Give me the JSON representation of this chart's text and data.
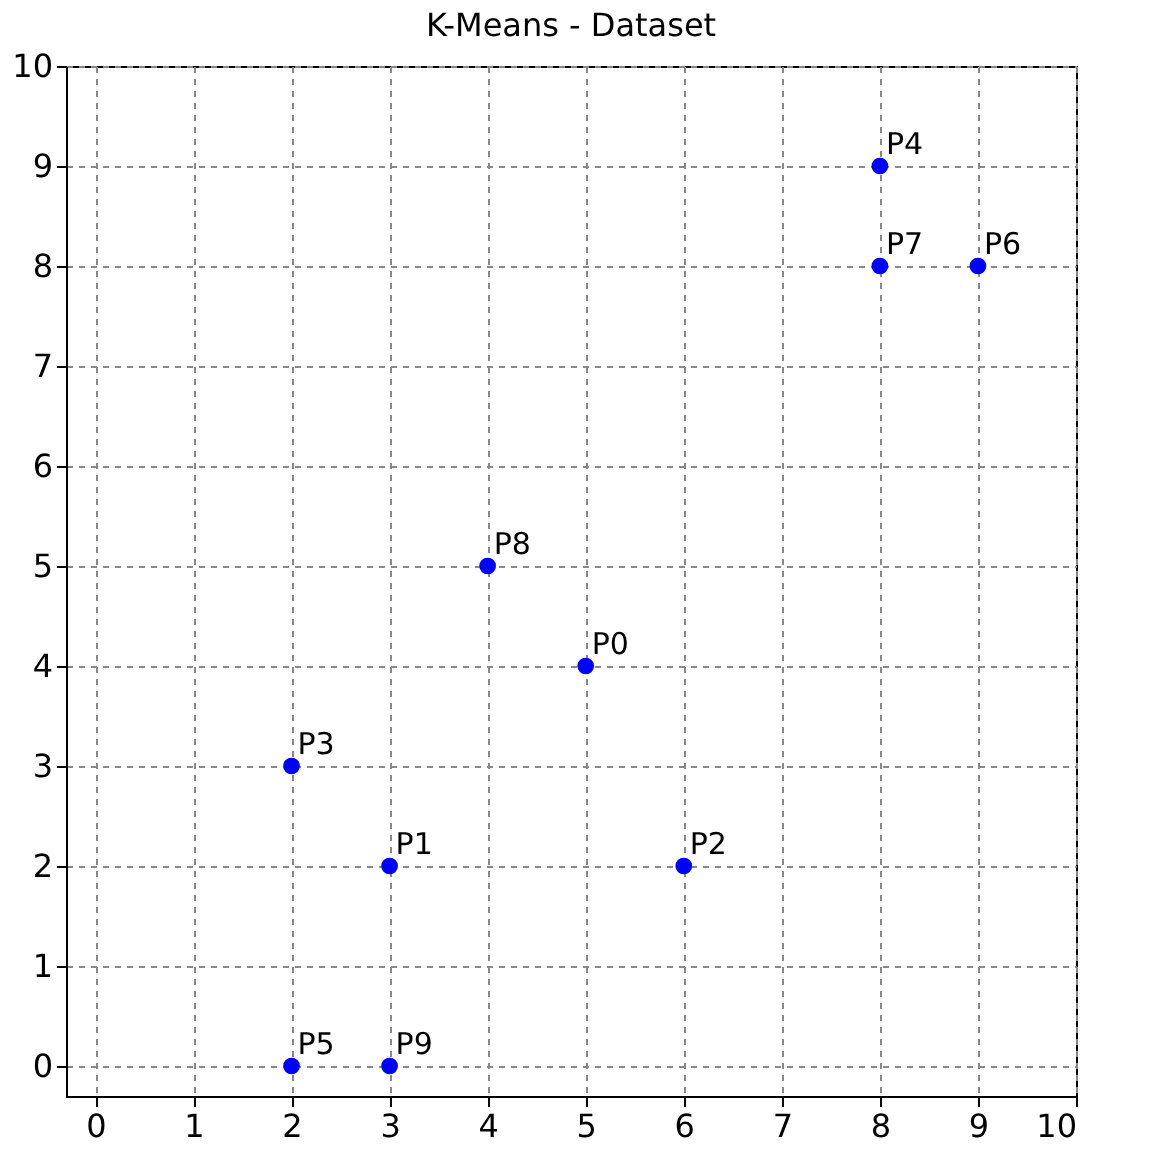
{
  "chart_data": {
    "type": "scatter",
    "title": "K-Means - Dataset",
    "x": [
      5,
      3,
      6,
      2,
      8,
      2,
      9,
      8,
      4,
      3
    ],
    "series": [
      {
        "color": "#0000ff",
        "values": [
          4,
          2,
          2,
          3,
          9,
          0,
          8,
          8,
          5,
          0
        ]
      }
    ],
    "marker": "circle",
    "xlim": [
      -0.3,
      10
    ],
    "ylim": [
      -0.3,
      10
    ],
    "xticks": [
      0,
      1,
      2,
      3,
      4,
      5,
      6,
      7,
      8,
      9,
      10
    ],
    "yticks": [
      0,
      1,
      2,
      3,
      4,
      5,
      6,
      7,
      8,
      9,
      10
    ],
    "grid": true,
    "annotations": [
      {
        "text": "P0",
        "x": 5,
        "y": 4
      },
      {
        "text": "P1",
        "x": 3,
        "y": 2
      },
      {
        "text": "P2",
        "x": 6,
        "y": 2
      },
      {
        "text": "P3",
        "x": 2,
        "y": 3
      },
      {
        "text": "P4",
        "x": 8,
        "y": 9
      },
      {
        "text": "P5",
        "x": 2,
        "y": 0
      },
      {
        "text": "P6",
        "x": 9,
        "y": 8
      },
      {
        "text": "P7",
        "x": 8,
        "y": 8
      },
      {
        "text": "P8",
        "x": 4,
        "y": 5
      },
      {
        "text": "P9",
        "x": 3,
        "y": 0
      }
    ]
  }
}
